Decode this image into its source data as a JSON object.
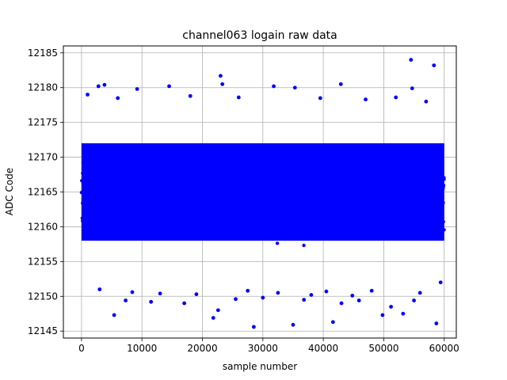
{
  "chart_data": {
    "type": "scatter",
    "title": "channel063 logain raw data",
    "xlabel": "sample number",
    "ylabel": "ADC Code",
    "xlim": [
      -3000,
      62000
    ],
    "ylim": [
      12144,
      12186
    ],
    "xticks": [
      0,
      10000,
      20000,
      30000,
      40000,
      50000,
      60000
    ],
    "xtick_labels": [
      "0",
      "10000",
      "20000",
      "30000",
      "40000",
      "50000",
      "60000"
    ],
    "yticks": [
      12145,
      12150,
      12155,
      12160,
      12165,
      12170,
      12175,
      12180,
      12185
    ],
    "ytick_labels": [
      "12145",
      "12150",
      "12155",
      "12160",
      "12165",
      "12170",
      "12175",
      "12180",
      "12185"
    ],
    "grid": true,
    "marker_color": "#0000ff",
    "series": [
      {
        "description": "dense band of ~60000 samples; core roughly 12158-12172, sparse outliers listed in points",
        "x_range": [
          0,
          60000
        ],
        "band": [
          12152,
          12177
        ],
        "core": [
          12158,
          12172
        ],
        "points": [
          [
            54500,
            12184
          ],
          [
            58300,
            12183.2
          ],
          [
            23000,
            12181.7
          ],
          [
            23300,
            12180.5
          ],
          [
            3800,
            12180.4
          ],
          [
            14500,
            12180.2
          ],
          [
            31800,
            12180.2
          ],
          [
            35300,
            12180
          ],
          [
            42900,
            12180.5
          ],
          [
            9200,
            12179.8
          ],
          [
            2800,
            12180.2
          ],
          [
            54700,
            12179.9
          ],
          [
            1000,
            12179
          ],
          [
            6000,
            12178.5
          ],
          [
            18000,
            12178.8
          ],
          [
            26000,
            12178.6
          ],
          [
            39500,
            12178.5
          ],
          [
            47000,
            12178.3
          ],
          [
            52000,
            12178.6
          ],
          [
            57000,
            12178
          ],
          [
            5400,
            12147.3
          ],
          [
            21800,
            12146.9
          ],
          [
            28500,
            12145.6
          ],
          [
            35000,
            12145.9
          ],
          [
            41600,
            12146.3
          ],
          [
            49800,
            12147.3
          ],
          [
            53200,
            12147.5
          ],
          [
            58700,
            12146.1
          ],
          [
            7300,
            12149.4
          ],
          [
            11500,
            12149.2
          ],
          [
            17000,
            12149
          ],
          [
            22600,
            12148
          ],
          [
            25500,
            12149.6
          ],
          [
            30000,
            12149.8
          ],
          [
            36800,
            12149.5
          ],
          [
            43000,
            12149
          ],
          [
            45900,
            12149.4
          ],
          [
            51200,
            12148.5
          ],
          [
            55000,
            12149.4
          ],
          [
            3000,
            12151
          ],
          [
            8400,
            12150.6
          ],
          [
            13000,
            12150.4
          ],
          [
            19000,
            12150.3
          ],
          [
            27500,
            12150.8
          ],
          [
            32500,
            12150.5
          ],
          [
            38000,
            12150.2
          ],
          [
            40500,
            12150.7
          ],
          [
            44800,
            12150.1
          ],
          [
            48000,
            12150.8
          ],
          [
            56000,
            12150.5
          ],
          [
            59400,
            12152
          ]
        ]
      }
    ]
  }
}
